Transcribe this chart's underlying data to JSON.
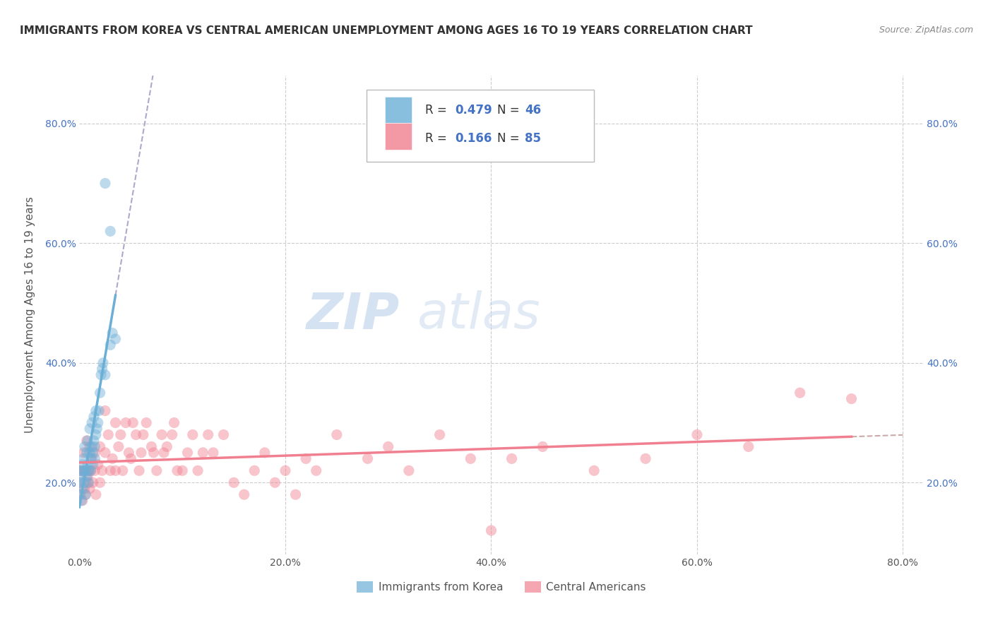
{
  "title": "IMMIGRANTS FROM KOREA VS CENTRAL AMERICAN UNEMPLOYMENT AMONG AGES 16 TO 19 YEARS CORRELATION CHART",
  "source": "Source: ZipAtlas.com",
  "ylabel": "Unemployment Among Ages 16 to 19 years",
  "xlim": [
    0.0,
    0.82
  ],
  "ylim": [
    0.08,
    0.88
  ],
  "korea_color": "#6baed6",
  "central_color": "#f08090",
  "korea_R": 0.479,
  "korea_N": 46,
  "central_R": 0.166,
  "central_N": 85,
  "korea_scatter_x": [
    0.0,
    0.001,
    0.001,
    0.002,
    0.002,
    0.003,
    0.003,
    0.004,
    0.004,
    0.005,
    0.005,
    0.006,
    0.006,
    0.007,
    0.007,
    0.008,
    0.008,
    0.009,
    0.009,
    0.01,
    0.01,
    0.011,
    0.011,
    0.012,
    0.012,
    0.013,
    0.013,
    0.014,
    0.014,
    0.015,
    0.015,
    0.016,
    0.016,
    0.017,
    0.018,
    0.019,
    0.02,
    0.021,
    0.022,
    0.023,
    0.025,
    0.03,
    0.032,
    0.035,
    0.025,
    0.03
  ],
  "korea_scatter_y": [
    0.2,
    0.22,
    0.18,
    0.21,
    0.17,
    0.23,
    0.19,
    0.22,
    0.24,
    0.2,
    0.26,
    0.22,
    0.18,
    0.25,
    0.21,
    0.23,
    0.27,
    0.22,
    0.2,
    0.25,
    0.29,
    0.24,
    0.22,
    0.26,
    0.3,
    0.25,
    0.23,
    0.27,
    0.31,
    0.26,
    0.24,
    0.28,
    0.32,
    0.29,
    0.3,
    0.32,
    0.35,
    0.38,
    0.39,
    0.4,
    0.38,
    0.43,
    0.45,
    0.44,
    0.7,
    0.62
  ],
  "central_scatter_x": [
    0.0,
    0.0,
    0.001,
    0.002,
    0.003,
    0.004,
    0.005,
    0.005,
    0.006,
    0.007,
    0.008,
    0.008,
    0.009,
    0.01,
    0.01,
    0.011,
    0.012,
    0.013,
    0.015,
    0.015,
    0.016,
    0.018,
    0.02,
    0.02,
    0.022,
    0.025,
    0.025,
    0.028,
    0.03,
    0.032,
    0.035,
    0.035,
    0.038,
    0.04,
    0.042,
    0.045,
    0.048,
    0.05,
    0.052,
    0.055,
    0.058,
    0.06,
    0.062,
    0.065,
    0.07,
    0.072,
    0.075,
    0.08,
    0.082,
    0.085,
    0.09,
    0.092,
    0.095,
    0.1,
    0.105,
    0.11,
    0.115,
    0.12,
    0.125,
    0.13,
    0.14,
    0.15,
    0.16,
    0.17,
    0.18,
    0.19,
    0.2,
    0.21,
    0.22,
    0.23,
    0.25,
    0.28,
    0.3,
    0.32,
    0.35,
    0.38,
    0.4,
    0.42,
    0.45,
    0.5,
    0.55,
    0.6,
    0.65,
    0.7,
    0.75
  ],
  "central_scatter_y": [
    0.22,
    0.18,
    0.2,
    0.22,
    0.17,
    0.25,
    0.19,
    0.22,
    0.18,
    0.27,
    0.2,
    0.21,
    0.22,
    0.26,
    0.19,
    0.22,
    0.24,
    0.2,
    0.25,
    0.22,
    0.18,
    0.23,
    0.26,
    0.2,
    0.22,
    0.32,
    0.25,
    0.28,
    0.22,
    0.24,
    0.3,
    0.22,
    0.26,
    0.28,
    0.22,
    0.3,
    0.25,
    0.24,
    0.3,
    0.28,
    0.22,
    0.25,
    0.28,
    0.3,
    0.26,
    0.25,
    0.22,
    0.28,
    0.25,
    0.26,
    0.28,
    0.3,
    0.22,
    0.22,
    0.25,
    0.28,
    0.22,
    0.25,
    0.28,
    0.25,
    0.28,
    0.2,
    0.18,
    0.22,
    0.25,
    0.2,
    0.22,
    0.18,
    0.24,
    0.22,
    0.28,
    0.24,
    0.26,
    0.22,
    0.28,
    0.24,
    0.12,
    0.24,
    0.26,
    0.22,
    0.24,
    0.28,
    0.26,
    0.35,
    0.34
  ],
  "background_color": "#ffffff",
  "grid_color": "#cccccc",
  "watermark_text1": "ZIP",
  "watermark_text2": "atlas",
  "legend_items": [
    {
      "label": "Immigrants from Korea",
      "color": "#6baed6"
    },
    {
      "label": "Central Americans",
      "color": "#f08090"
    }
  ],
  "ytick_vals": [
    0.2,
    0.4,
    0.6,
    0.8
  ],
  "xtick_vals": [
    0.0,
    0.2,
    0.4,
    0.6,
    0.8
  ]
}
